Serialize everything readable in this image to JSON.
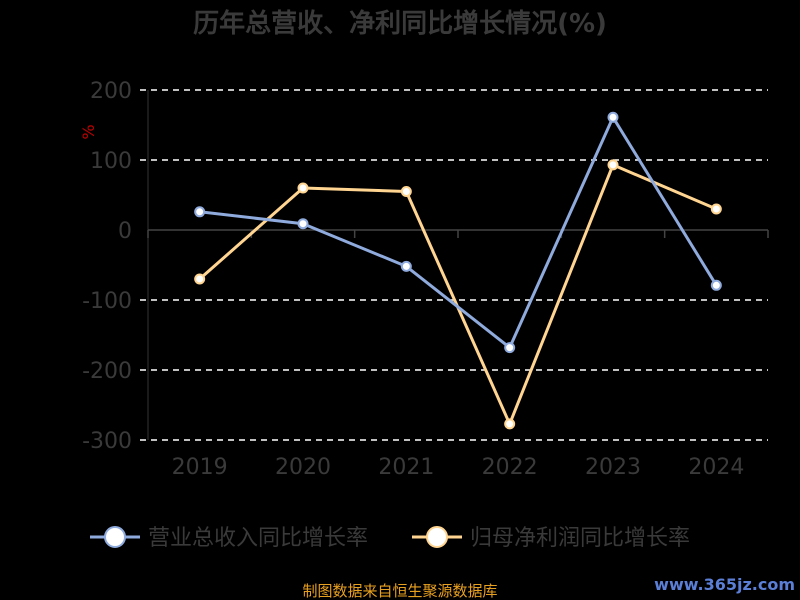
{
  "chart_data": {
    "type": "line",
    "title": "历年总营收、净利同比增长情况(%)",
    "ylabel": "%",
    "categories": [
      "2019",
      "2020",
      "2021",
      "2022",
      "2023",
      "2024"
    ],
    "y_ticks": [
      "200",
      "100",
      "0",
      "-100",
      "-200",
      "-300"
    ],
    "ylim": [
      -300,
      200
    ],
    "grid": true,
    "legend_position": "bottom",
    "series": [
      {
        "name": "营业总收入同比增长率",
        "color": "#8faadc",
        "values": [
          26,
          9,
          -52,
          -168,
          161,
          -79
        ]
      },
      {
        "name": "归母净利润同比增长率",
        "color": "#ffd591",
        "values": [
          -70,
          60,
          55,
          -277,
          93,
          30
        ]
      }
    ]
  },
  "footer": {
    "source": "制图数据来自恒生聚源数据库",
    "watermark": "www.365jz.com"
  }
}
